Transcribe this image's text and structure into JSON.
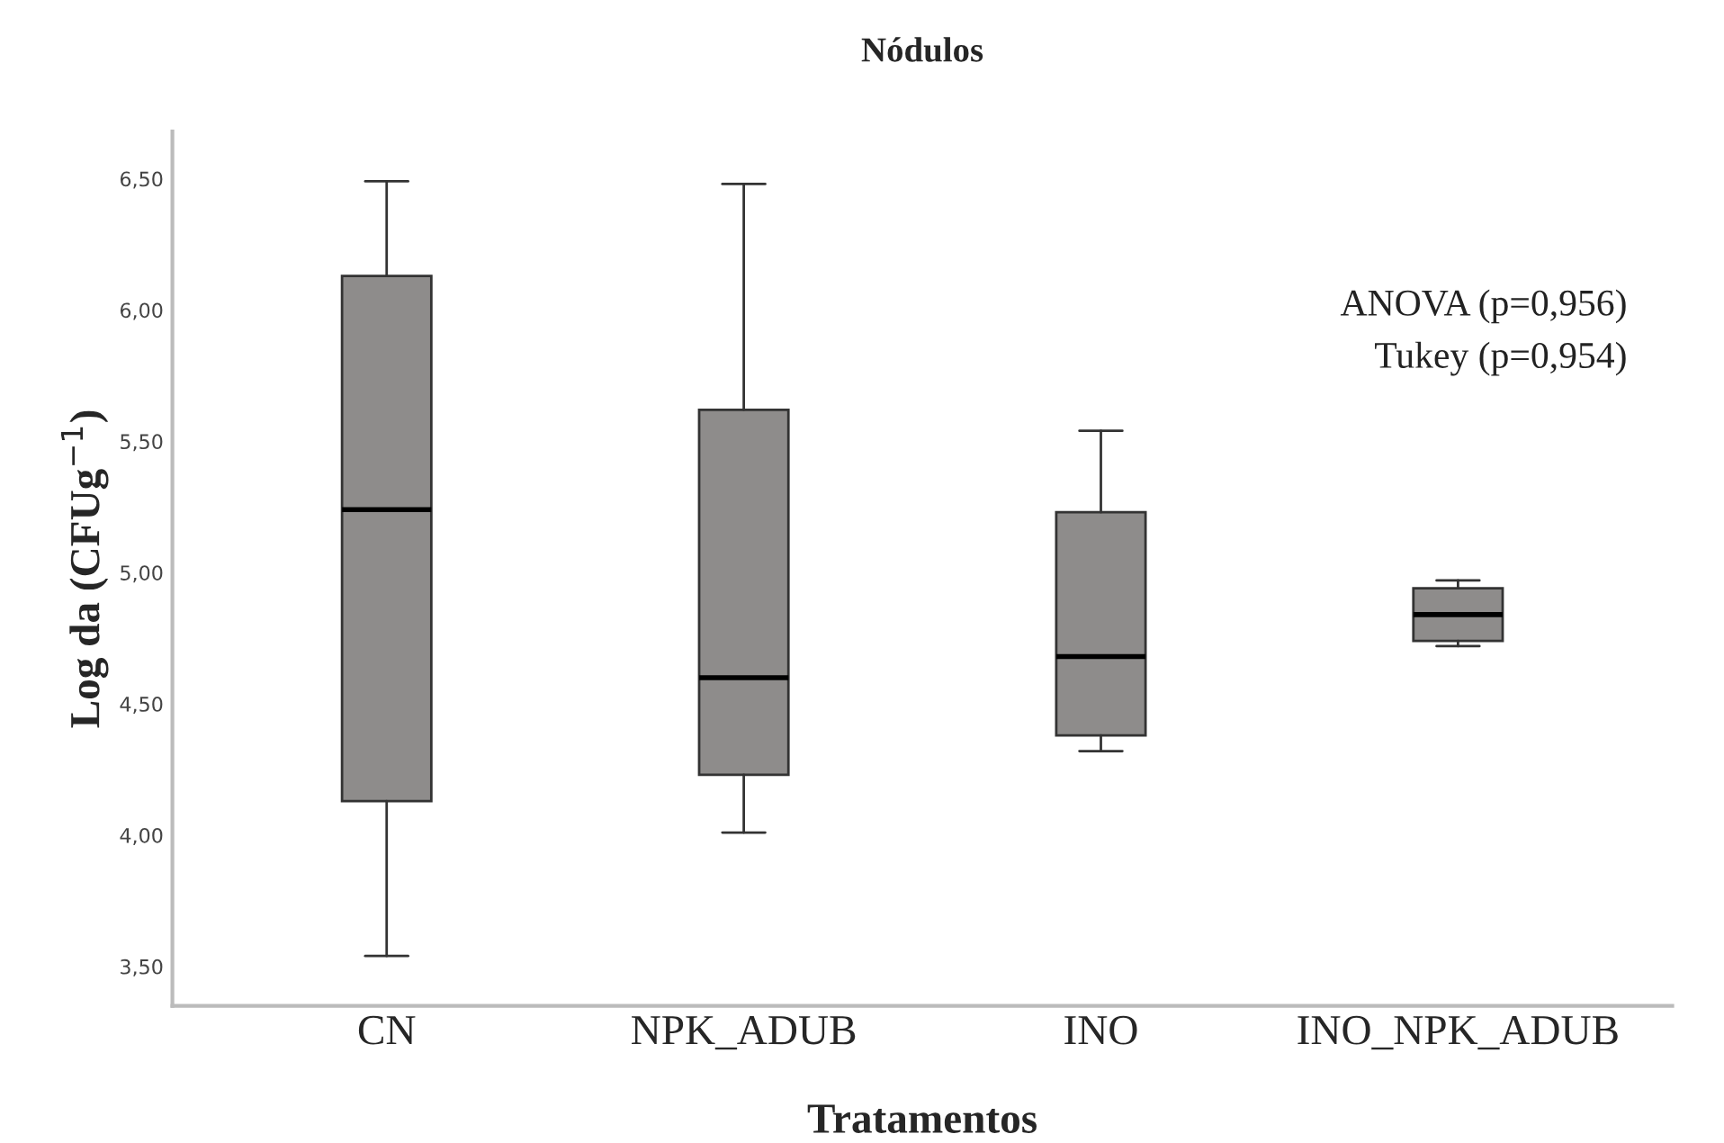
{
  "chart_data": {
    "type": "box",
    "title": "Nódulos",
    "xlabel": "Tratamentos",
    "ylabel": "Log da (CFUg$^{−1}$)",
    "categories": [
      "CN",
      "NPK_ADUB",
      "INO",
      "INO_NPK_ADUB"
    ],
    "boxes": [
      {
        "low": 3.54,
        "q1": 4.13,
        "median": 5.24,
        "q3": 6.13,
        "high": 6.49
      },
      {
        "low": 4.01,
        "q1": 4.23,
        "median": 4.6,
        "q3": 5.62,
        "high": 6.48
      },
      {
        "low": 4.32,
        "q1": 4.38,
        "median": 4.68,
        "q3": 5.23,
        "high": 5.54
      },
      {
        "low": 4.72,
        "q1": 4.74,
        "median": 4.84,
        "q3": 4.94,
        "high": 4.97
      }
    ],
    "color": "#8e8c8b",
    "ylim": [
      3.35,
      6.68
    ],
    "yticks": [
      {
        "value": 3.5,
        "label": "3,50"
      },
      {
        "value": 4.0,
        "label": "4,00"
      },
      {
        "value": 4.5,
        "label": "4,50"
      },
      {
        "value": 5.0,
        "label": "5,00"
      },
      {
        "value": 5.5,
        "label": "5,50"
      },
      {
        "value": 6.0,
        "label": "6,00"
      },
      {
        "value": 6.5,
        "label": "6,50"
      }
    ],
    "grid": false,
    "annotations": [
      "ANOVA (p=0,956)",
      "Tukey (p=0,954)"
    ]
  }
}
